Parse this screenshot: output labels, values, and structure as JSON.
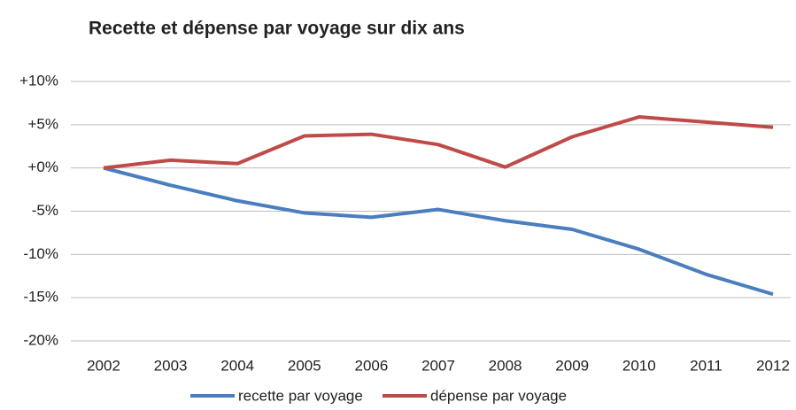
{
  "chart_data": {
    "type": "line",
    "title": "Recette et dépense par voyage sur dix ans",
    "categories": [
      "2002",
      "2003",
      "2004",
      "2005",
      "2006",
      "2007",
      "2008",
      "2009",
      "2010",
      "2011",
      "2012"
    ],
    "series": [
      {
        "name": "recette par voyage",
        "color": "#4a7ebf",
        "values": [
          0,
          -2.0,
          -3.8,
          -5.2,
          -5.7,
          -4.8,
          -6.1,
          -7.1,
          -9.4,
          -12.3,
          -14.6
        ]
      },
      {
        "name": "dépense par voyage",
        "color": "#be4b48",
        "values": [
          0,
          0.9,
          0.5,
          3.7,
          3.9,
          2.7,
          0.1,
          3.6,
          5.9,
          5.3,
          4.7
        ]
      }
    ],
    "ylim": [
      -20,
      10
    ],
    "yticks": [
      {
        "value": -20,
        "label": "-20%"
      },
      {
        "value": -15,
        "label": "-15%"
      },
      {
        "value": -10,
        "label": "-10%"
      },
      {
        "value": -5,
        "label": "-5%"
      },
      {
        "value": 0,
        "label": "+0%"
      },
      {
        "value": 5,
        "label": "+5%"
      },
      {
        "value": 10,
        "label": "+10%"
      }
    ],
    "grid": true,
    "legend": "bottom"
  }
}
